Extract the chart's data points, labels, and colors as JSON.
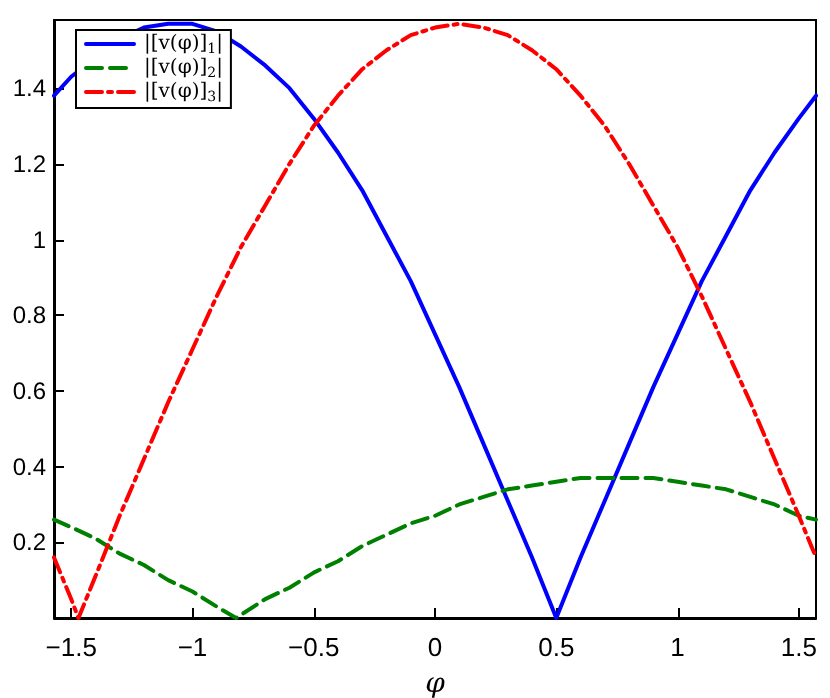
{
  "chart_data": {
    "type": "line",
    "xlabel": "φ",
    "xlim": [
      -1.5708,
      1.5708
    ],
    "xticks": [
      -1.5,
      -1,
      -0.5,
      0,
      0.5,
      1,
      1.5
    ],
    "ylim": [
      0,
      1.58
    ],
    "yticks": [
      0.2,
      0.4,
      0.6,
      0.8,
      1,
      1.2,
      1.4
    ],
    "grid": false,
    "legend": "top left",
    "marker": "none",
    "series": [
      {
        "name": "|[v(φ)]$_{1}$|",
        "color": "#0000ff",
        "line_style": "solid",
        "x": [
          -1.5708,
          -1.5,
          -1.4,
          -1.3,
          -1.2,
          -1.1,
          -1.0,
          -0.9,
          -0.8,
          -0.7,
          -0.6,
          -0.5,
          -0.4,
          -0.3,
          -0.2,
          -0.1,
          0,
          0.1,
          0.2,
          0.3,
          0.4,
          0.5,
          0.6,
          0.7,
          0.8,
          0.9,
          1.0,
          1.1,
          1.2,
          1.3,
          1.4,
          1.5,
          1.5708
        ],
        "values": [
          1.38,
          1.43,
          null,
          1.53,
          1.56,
          1.57,
          1.57,
          1.55,
          1.51,
          1.46,
          1.4,
          1.32,
          1.23,
          1.13,
          1.01,
          0.89,
          0.75,
          0.61,
          0.46,
          0.31,
          0.16,
          0,
          0.16,
          0.31,
          0.46,
          0.61,
          0.75,
          0.89,
          1.01,
          1.13,
          1.23,
          1.32,
          1.38
        ]
      },
      {
        "name": "|[v(φ)]$_{2}$|",
        "color": "#008000",
        "line_style": "dashed",
        "x": [
          -1.5708,
          -1.5,
          -1.4,
          -1.3,
          -1.2,
          -1.1,
          -1.0,
          -0.9,
          -0.82,
          -0.7,
          -0.6,
          -0.5,
          -0.4,
          -0.3,
          -0.2,
          -0.1,
          0,
          0.1,
          0.2,
          0.3,
          0.4,
          0.5,
          0.6,
          0.7,
          0.8,
          0.9,
          1.0,
          1.1,
          1.2,
          1.3,
          1.4,
          1.5,
          1.5708
        ],
        "values": [
          0.26,
          0.24,
          0.21,
          0.17,
          0.14,
          0.1,
          0.07,
          0.03,
          0,
          0.05,
          0.08,
          0.12,
          0.15,
          0.19,
          0.22,
          0.25,
          0.27,
          0.3,
          0.32,
          0.34,
          0.35,
          0.36,
          0.37,
          0.37,
          0.37,
          0.37,
          0.36,
          0.35,
          0.34,
          0.32,
          0.3,
          0.27,
          0.26
        ]
      },
      {
        "name": "|[v(φ)]$_{3}$|",
        "color": "#ff0000",
        "line_style": "dashdot",
        "x": [
          -1.5708,
          -1.5,
          -1.47,
          -1.4,
          -1.3,
          -1.2,
          -1.1,
          -1.0,
          -0.9,
          -0.8,
          -0.7,
          -0.6,
          -0.5,
          -0.4,
          -0.3,
          -0.2,
          -0.1,
          0,
          0.1,
          0.2,
          0.3,
          0.4,
          0.5,
          0.6,
          0.7,
          0.8,
          0.9,
          1.0,
          1.1,
          1.2,
          1.3,
          1.4,
          1.5,
          1.5708
        ],
        "values": [
          0.16,
          0.05,
          0,
          0.11,
          0.27,
          0.42,
          0.57,
          0.71,
          0.85,
          0.98,
          1.09,
          1.2,
          1.3,
          1.38,
          1.45,
          1.5,
          1.54,
          1.56,
          1.57,
          1.56,
          1.54,
          1.5,
          1.45,
          1.38,
          1.3,
          1.2,
          1.09,
          0.98,
          0.85,
          0.71,
          0.57,
          0.42,
          0.27,
          0.16
        ]
      }
    ]
  }
}
